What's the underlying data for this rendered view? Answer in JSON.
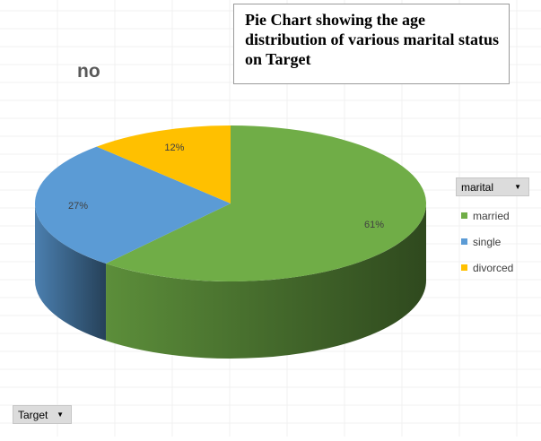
{
  "chart_data": {
    "type": "pie",
    "title": "Pie Chart showing the age distribution of various marital status on Target",
    "subset_label": "no",
    "categories": [
      "married",
      "single",
      "divorced"
    ],
    "values": [
      61,
      27,
      12
    ],
    "labels": [
      "61%",
      "27%",
      "12%"
    ],
    "colors": [
      "#70ad47",
      "#5b9bd5",
      "#ffc000"
    ],
    "legend_field": "marital",
    "filter_field": "Target",
    "legend_position": "right"
  }
}
